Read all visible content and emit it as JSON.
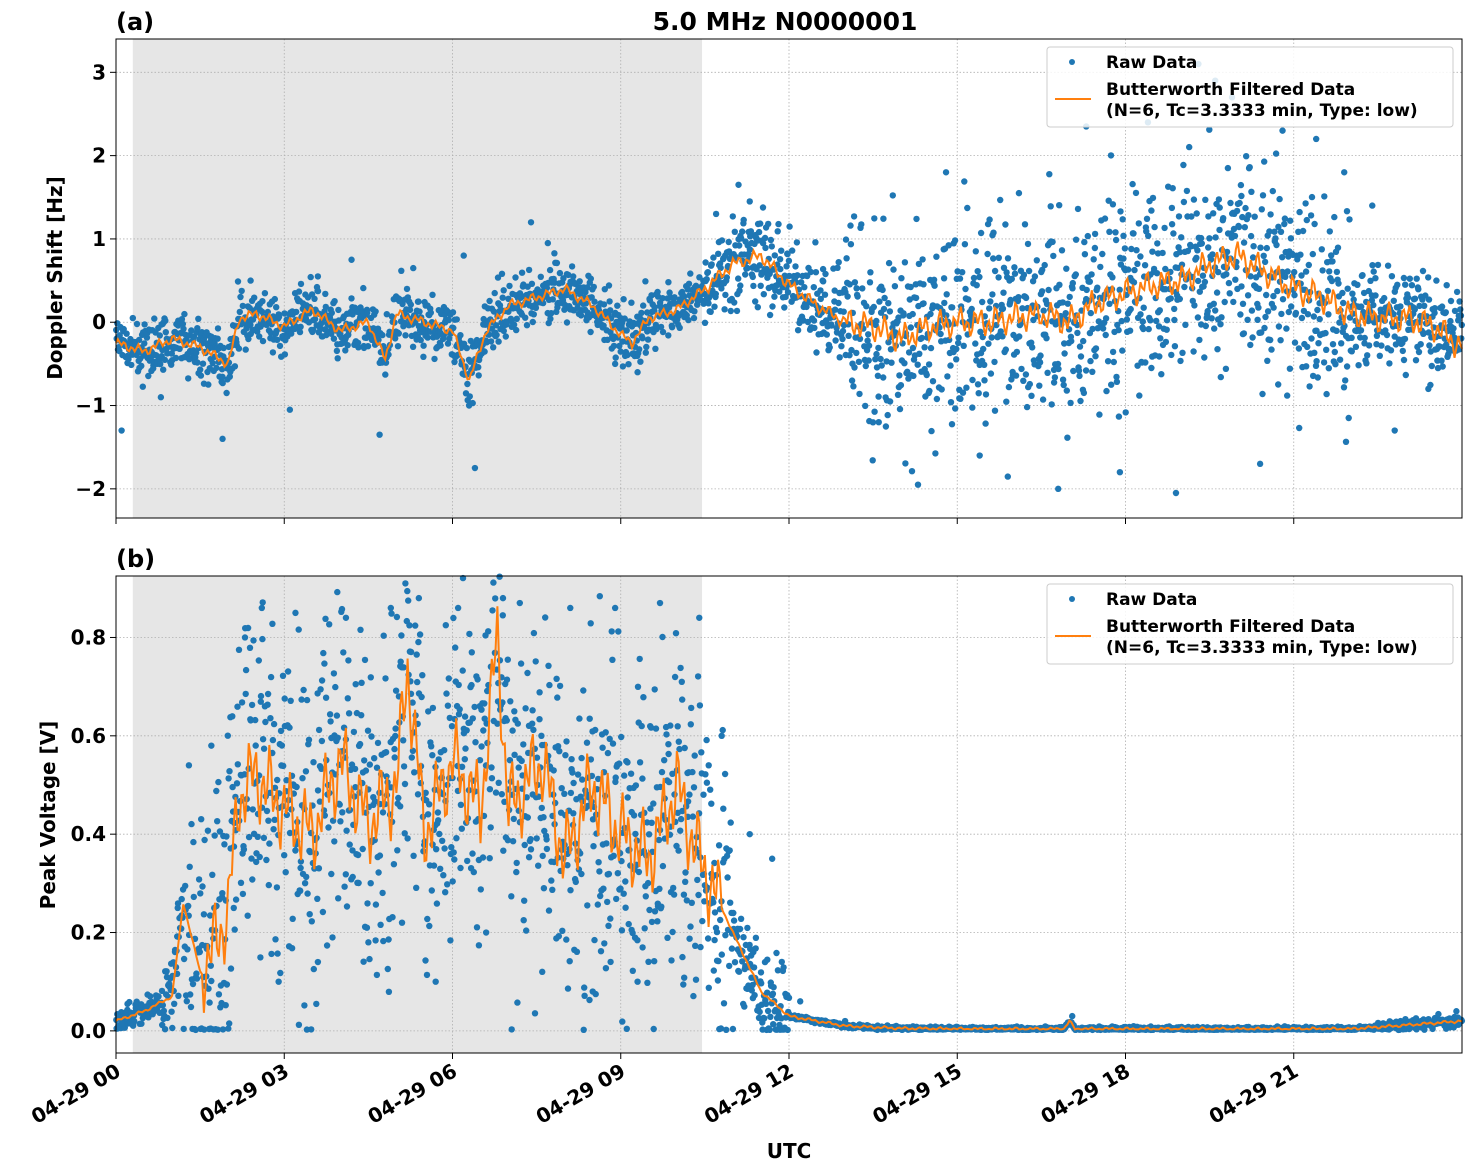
{
  "figure": {
    "title": "5.0 MHz N0000001",
    "xlabel": "UTC",
    "x_tick_labels": [
      "04-29 00",
      "04-29 03",
      "04-29 06",
      "04-29 09",
      "04-29 12",
      "04-29 15",
      "04-29 18",
      "04-29 21"
    ]
  },
  "legend": {
    "raw": "Raw Data",
    "filtered_line1": "Butterworth Filtered Data",
    "filtered_line2": "(N=6, Tc=3.3333 min, Type: low)"
  },
  "colors": {
    "raw": "#1f77b4",
    "filtered": "#ff7f0e",
    "shade": "#e6e6e6",
    "grid": "#b0b0b0"
  },
  "chart_data": [
    {
      "type": "scatter",
      "panel_label": "(a)",
      "ylabel": "Doppler Shift [Hz]",
      "xlim_hours": [
        0,
        24
      ],
      "ylim": [
        -2.35,
        3.4
      ],
      "yticks": [
        3,
        2,
        1,
        0,
        -1,
        -2
      ],
      "ytick_labels": [
        "3",
        "2",
        "1",
        "0",
        "−1",
        "−2"
      ],
      "grid": true,
      "legend_position": "upper right",
      "shaded_region_hours": [
        0.3,
        10.45
      ],
      "series": [
        {
          "name": "Butterworth Filtered Data",
          "kind": "line",
          "x_hours": [
            0,
            0.5,
            1,
            1.5,
            2,
            2.2,
            2.5,
            3,
            3.5,
            4,
            4.5,
            4.8,
            5,
            5.5,
            6,
            6.3,
            6.6,
            7,
            7.5,
            8,
            8.5,
            9,
            9.2,
            9.5,
            10,
            10.5,
            11,
            11.5,
            12,
            12.5,
            13,
            13.5,
            14,
            14.5,
            15,
            15.5,
            16,
            16.5,
            17,
            17.5,
            18,
            18.5,
            19,
            19.5,
            20,
            20.5,
            21,
            21.5,
            22,
            22.5,
            23,
            23.5,
            24
          ],
          "y": [
            -0.25,
            -0.35,
            -0.2,
            -0.3,
            -0.5,
            0.05,
            0.1,
            -0.05,
            0.15,
            -0.1,
            0.0,
            -0.45,
            0.1,
            0.0,
            -0.1,
            -0.7,
            -0.1,
            0.2,
            0.3,
            0.4,
            0.2,
            -0.15,
            -0.25,
            0.05,
            0.15,
            0.4,
            0.7,
            0.8,
            0.45,
            0.2,
            0.0,
            -0.05,
            -0.2,
            -0.05,
            0.0,
            0.0,
            0.05,
            0.1,
            0.0,
            0.25,
            0.35,
            0.45,
            0.5,
            0.7,
            0.8,
            0.6,
            0.4,
            0.3,
            0.1,
            0.05,
            0.05,
            -0.05,
            -0.3
          ]
        },
        {
          "name": "Raw Data",
          "kind": "scatter",
          "x_hours": [
            0.1,
            0.3,
            0.8,
            1.9,
            2.4,
            3.1,
            3.6,
            4.2,
            4.7,
            5.3,
            6.2,
            6.4,
            7.4,
            7.7,
            8.9,
            9.3,
            10.7,
            11.1,
            11.3,
            12.6,
            13.6,
            14.3,
            14.8,
            15.4,
            16.1,
            16.8,
            17.3,
            17.9,
            18.4,
            18.9,
            19.3,
            19.6,
            19.9,
            20.4,
            20.8,
            21.4,
            21.9,
            22.4,
            22.8,
            23.4
          ],
          "y": [
            -1.3,
            0.05,
            -0.9,
            -1.4,
            0.5,
            -1.05,
            0.55,
            0.75,
            -1.35,
            0.65,
            0.8,
            -1.75,
            1.2,
            0.95,
            -0.5,
            -0.6,
            1.3,
            1.65,
            1.45,
            0.5,
            -1.2,
            -1.95,
            1.8,
            -1.6,
            1.55,
            -2.0,
            2.35,
            -1.8,
            2.4,
            -2.05,
            3.1,
            2.9,
            2.7,
            -1.7,
            2.3,
            2.2,
            1.8,
            1.4,
            -1.3,
            -0.8
          ]
        }
      ]
    },
    {
      "type": "scatter",
      "panel_label": "(b)",
      "ylabel": "Peak Voltage [V]",
      "xlim_hours": [
        0,
        24
      ],
      "ylim": [
        -0.045,
        0.925
      ],
      "yticks": [
        0.8,
        0.6,
        0.4,
        0.2,
        0.0
      ],
      "ytick_labels": [
        "0.8",
        "0.6",
        "0.4",
        "0.2",
        "0.0"
      ],
      "grid": true,
      "legend_position": "upper right",
      "shaded_region_hours": [
        0.3,
        10.45
      ],
      "series": [
        {
          "name": "Butterworth Filtered Data",
          "kind": "line",
          "x_hours": [
            0,
            0.5,
            1,
            1.2,
            1.5,
            1.8,
            2,
            2.2,
            2.5,
            3,
            3.5,
            4,
            4.5,
            5,
            5.2,
            5.5,
            6,
            6.5,
            6.8,
            7,
            7.3,
            7.6,
            8,
            8.5,
            9,
            9.5,
            10,
            10.3,
            10.6,
            11,
            11.5,
            12,
            13,
            14,
            15,
            16,
            16.9,
            17.0,
            17.1,
            18,
            19,
            20,
            21,
            22,
            22.8,
            23.4,
            24
          ],
          "y": [
            0.02,
            0.04,
            0.07,
            0.26,
            0.12,
            0.18,
            0.25,
            0.48,
            0.52,
            0.45,
            0.4,
            0.55,
            0.42,
            0.5,
            0.74,
            0.4,
            0.55,
            0.45,
            0.8,
            0.45,
            0.5,
            0.55,
            0.35,
            0.5,
            0.4,
            0.35,
            0.5,
            0.38,
            0.3,
            0.2,
            0.08,
            0.03,
            0.01,
            0.005,
            0.004,
            0.004,
            0.004,
            0.02,
            0.004,
            0.004,
            0.004,
            0.004,
            0.004,
            0.004,
            0.01,
            0.015,
            0.02
          ]
        },
        {
          "name": "Raw Data",
          "kind": "scatter",
          "x_hours": [
            0.1,
            0.6,
            1.1,
            1.3,
            1.7,
            2.1,
            2.3,
            2.6,
            2.9,
            3.2,
            3.6,
            4.1,
            4.5,
            4.9,
            5.1,
            5.4,
            5.7,
            6.1,
            6.6,
            6.9,
            7.2,
            7.6,
            8.1,
            8.5,
            8.9,
            9.3,
            9.7,
            10.1,
            10.4,
            10.8,
            11.3,
            11.7,
            12.2,
            13,
            15,
            17.05,
            19,
            21,
            23,
            23.9
          ],
          "y": [
            0.015,
            0.04,
            0.25,
            0.54,
            0.58,
            0.25,
            0.8,
            0.86,
            0.1,
            0.85,
            0.14,
            0.84,
            0.18,
            0.86,
            0.22,
            0.88,
            0.1,
            0.86,
            0.2,
            0.88,
            0.87,
            0.12,
            0.86,
            0.08,
            0.86,
            0.1,
            0.87,
            0.15,
            0.84,
            0.6,
            0.4,
            0.35,
            0.06,
            0.02,
            0.008,
            0.03,
            0.008,
            0.008,
            0.015,
            0.04
          ]
        }
      ]
    }
  ]
}
